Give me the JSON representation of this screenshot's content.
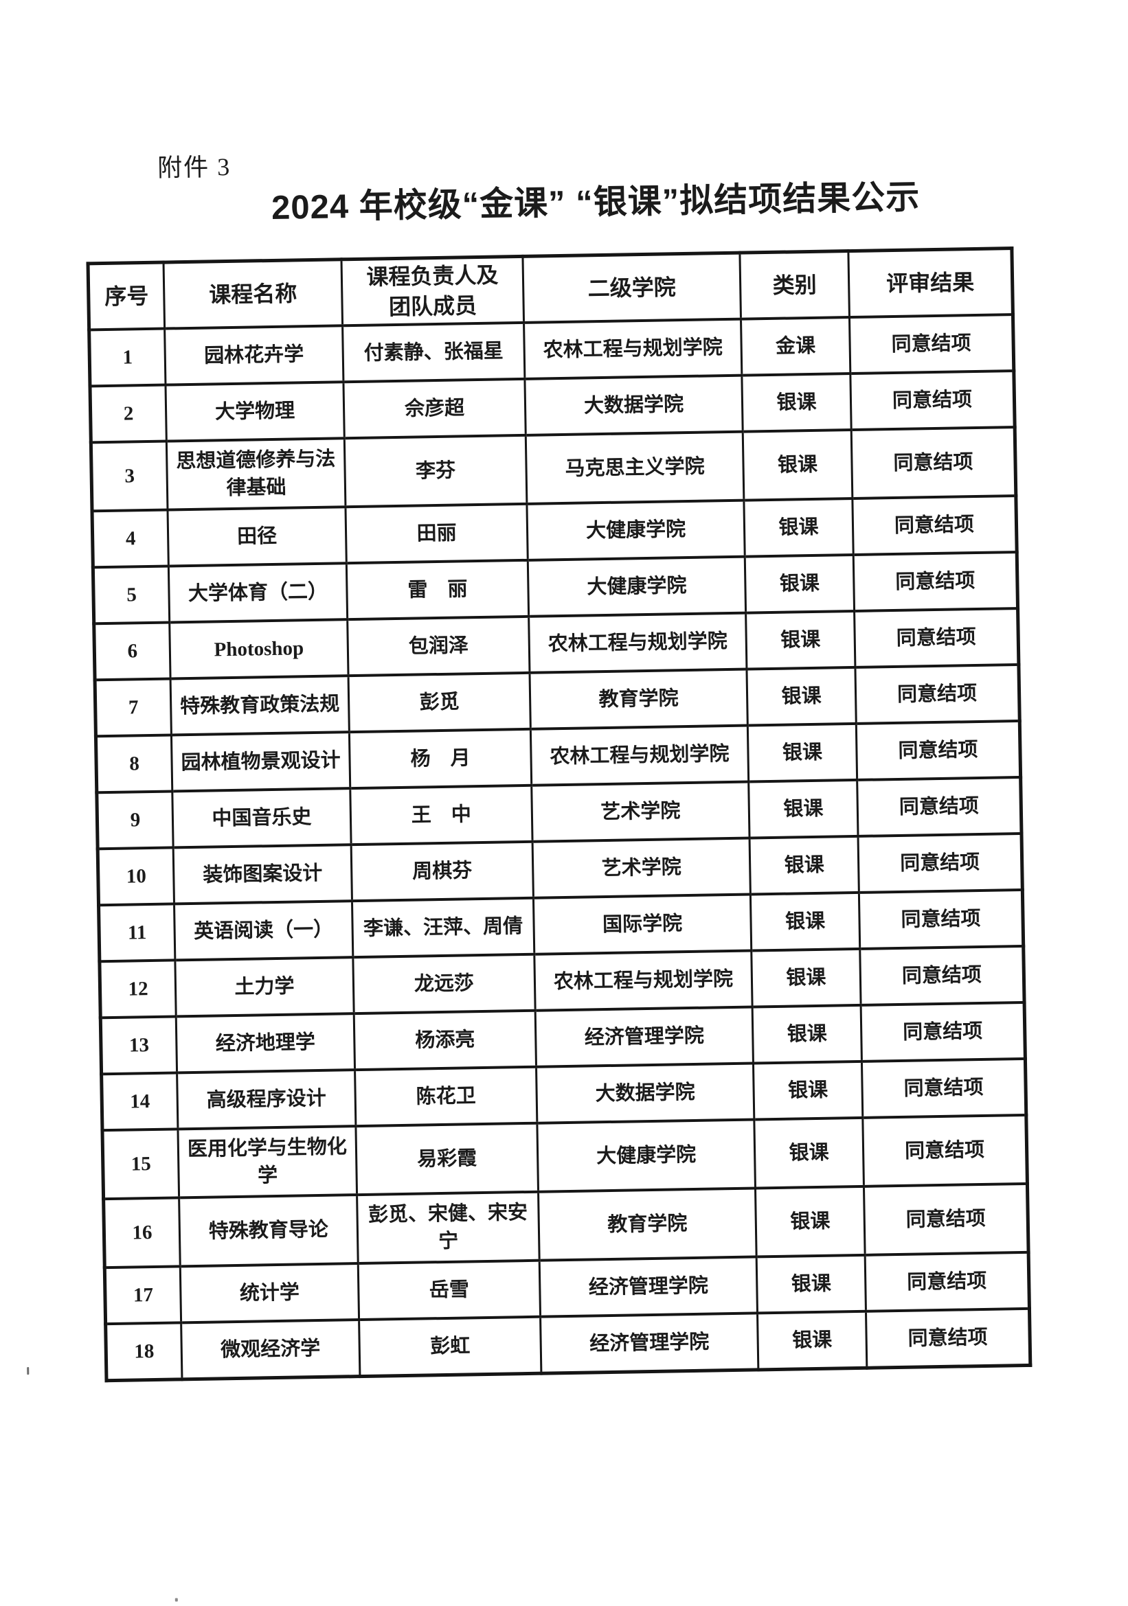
{
  "colors": {
    "ink": "#1b1b1b",
    "paper": "#ffffff",
    "table_rule": "#151515"
  },
  "page": {
    "attachment_label": "附件 3",
    "title": "2024 年校级“金课” “银课”拟结项结果公示"
  },
  "table": {
    "headers": [
      "序号",
      "课程名称",
      "课程负责人及\n团队成员",
      "二级学院",
      "类别",
      "评审结果"
    ],
    "rows": [
      {
        "no": "1",
        "course": "园林花卉学",
        "leader": "付素静、张福星",
        "college": "农林工程与规划学院",
        "category": "金课",
        "result": "同意结项"
      },
      {
        "no": "2",
        "course": "大学物理",
        "leader": "佘彦超",
        "college": "大数据学院",
        "category": "银课",
        "result": "同意结项"
      },
      {
        "no": "3",
        "course": "思想道德修养与法\n律基础",
        "leader": "李芬",
        "college": "马克思主义学院",
        "category": "银课",
        "result": "同意结项"
      },
      {
        "no": "4",
        "course": "田径",
        "leader": "田丽",
        "college": "大健康学院",
        "category": "银课",
        "result": "同意结项"
      },
      {
        "no": "5",
        "course": "大学体育（二）",
        "leader": "雷　丽",
        "college": "大健康学院",
        "category": "银课",
        "result": "同意结项"
      },
      {
        "no": "6",
        "course": "Photoshop",
        "leader": "包润泽",
        "college": "农林工程与规划学院",
        "category": "银课",
        "result": "同意结项"
      },
      {
        "no": "7",
        "course": "特殊教育政策法规",
        "leader": "彭觅",
        "college": "教育学院",
        "category": "银课",
        "result": "同意结项"
      },
      {
        "no": "8",
        "course": "园林植物景观设计",
        "leader": "杨　月",
        "college": "农林工程与规划学院",
        "category": "银课",
        "result": "同意结项"
      },
      {
        "no": "9",
        "course": "中国音乐史",
        "leader": "王　中",
        "college": "艺术学院",
        "category": "银课",
        "result": "同意结项"
      },
      {
        "no": "10",
        "course": "装饰图案设计",
        "leader": "周棋芬",
        "college": "艺术学院",
        "category": "银课",
        "result": "同意结项"
      },
      {
        "no": "11",
        "course": "英语阅读（一）",
        "leader": "李谦、汪萍、周倩",
        "college": "国际学院",
        "category": "银课",
        "result": "同意结项"
      },
      {
        "no": "12",
        "course": "土力学",
        "leader": "龙远莎",
        "college": "农林工程与规划学院",
        "category": "银课",
        "result": "同意结项"
      },
      {
        "no": "13",
        "course": "经济地理学",
        "leader": "杨添亮",
        "college": "经济管理学院",
        "category": "银课",
        "result": "同意结项"
      },
      {
        "no": "14",
        "course": "高级程序设计",
        "leader": "陈花卫",
        "college": "大数据学院",
        "category": "银课",
        "result": "同意结项"
      },
      {
        "no": "15",
        "course": "医用化学与生物化\n学",
        "leader": "易彩霞",
        "college": "大健康学院",
        "category": "银课",
        "result": "同意结项"
      },
      {
        "no": "16",
        "course": "特殊教育导论",
        "leader": "彭觅、宋健、宋安\n宁",
        "college": "教育学院",
        "category": "银课",
        "result": "同意结项"
      },
      {
        "no": "17",
        "course": "统计学",
        "leader": "岳雪",
        "college": "经济管理学院",
        "category": "银课",
        "result": "同意结项"
      },
      {
        "no": "18",
        "course": "微观经济学",
        "leader": "彭虹",
        "college": "经济管理学院",
        "category": "银课",
        "result": "同意结项"
      }
    ]
  }
}
